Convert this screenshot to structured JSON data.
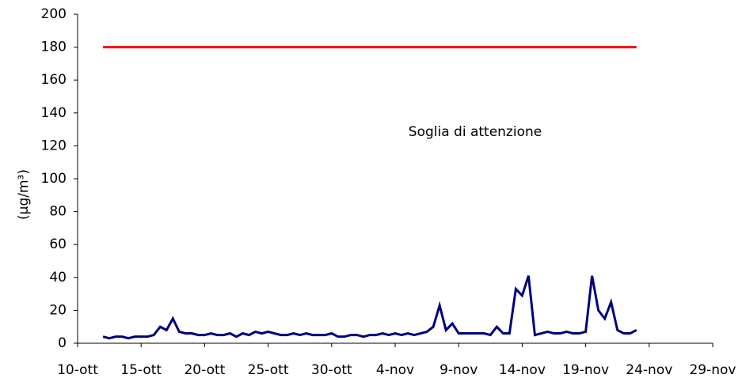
{
  "chart_data": {
    "type": "line",
    "y_label": "(µg/m³)",
    "xlim": [
      0,
      50
    ],
    "xticks": [
      {
        "value": 0,
        "label": "10-ott"
      },
      {
        "value": 5,
        "label": "15-ott"
      },
      {
        "value": 10,
        "label": "20-ott"
      },
      {
        "value": 15,
        "label": "25-ott"
      },
      {
        "value": 20,
        "label": "30-ott"
      },
      {
        "value": 25,
        "label": "4-nov"
      },
      {
        "value": 30,
        "label": "9-nov"
      },
      {
        "value": 35,
        "label": "14-nov"
      },
      {
        "value": 40,
        "label": "19-nov"
      },
      {
        "value": 45,
        "label": "24-nov"
      },
      {
        "value": 50,
        "label": "29-nov"
      }
    ],
    "ylim": [
      0,
      200
    ],
    "yticks": [
      0,
      20,
      40,
      60,
      80,
      100,
      120,
      140,
      160,
      180,
      200
    ],
    "grid": false,
    "series": [
      {
        "color": "#000080",
        "x": [
          2,
          2.5,
          3,
          3.5,
          4,
          4.5,
          5,
          5.5,
          6,
          6.5,
          7,
          7.5,
          8,
          8.5,
          9,
          9.5,
          10,
          10.5,
          11,
          11.5,
          12,
          12.5,
          13,
          13.5,
          14,
          14.5,
          15,
          15.5,
          16,
          16.5,
          17,
          17.5,
          18,
          18.5,
          19,
          19.5,
          20,
          20.5,
          21,
          21.5,
          22,
          22.5,
          23,
          23.5,
          24,
          24.5,
          25,
          25.5,
          26,
          26.5,
          27,
          27.5,
          28,
          28.5,
          29,
          29.5,
          30,
          30.5,
          31,
          31.5,
          32,
          32.5,
          33,
          33.5,
          34,
          34.5,
          35,
          35.5,
          36,
          36.5,
          37,
          37.5,
          38,
          38.5,
          39,
          39.5,
          40,
          40.5,
          41,
          41.5,
          42,
          42.5,
          43,
          43.5,
          44
        ],
        "values": [
          4,
          3,
          4,
          4,
          3,
          4,
          4,
          4,
          5,
          10,
          8,
          15,
          7,
          6,
          6,
          5,
          5,
          6,
          5,
          5,
          6,
          4,
          6,
          5,
          7,
          6,
          7,
          6,
          5,
          5,
          6,
          5,
          6,
          5,
          5,
          5,
          6,
          4,
          4,
          5,
          5,
          4,
          5,
          5,
          6,
          5,
          6,
          5,
          6,
          5,
          6,
          7,
          10,
          23,
          8,
          12,
          6,
          6,
          6,
          6,
          6,
          5,
          10,
          6,
          6,
          33,
          29,
          41,
          5,
          6,
          7,
          6,
          6,
          7,
          6,
          6,
          7,
          41,
          20,
          15,
          25,
          8,
          6,
          6,
          8
        ]
      },
      {
        "name": "Soglia di attenzione",
        "color": "#ff0000",
        "x": [
          2,
          44
        ],
        "values": [
          180,
          180
        ]
      }
    ]
  }
}
